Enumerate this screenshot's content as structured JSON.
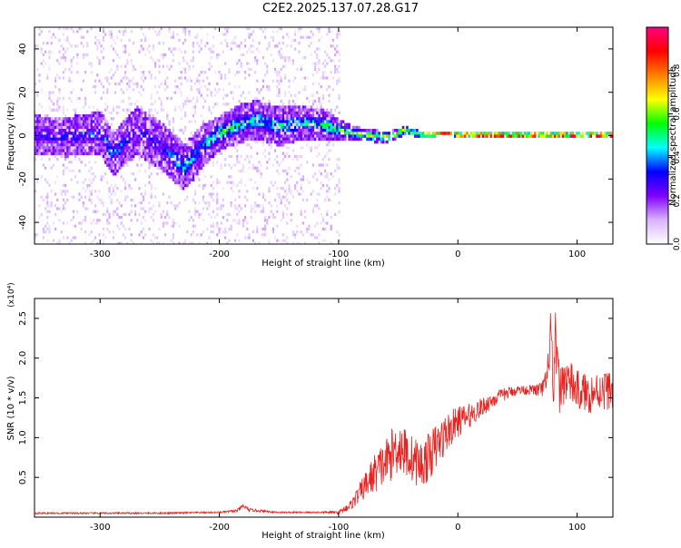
{
  "title": "C2E2.2025.137.07.28.G17",
  "colors": {
    "snr_line": "#e8211e",
    "axis": "#000000",
    "background": "#ffffff",
    "colorbar_stops": [
      "#ffffff",
      "#d9b3ff",
      "#8000ff",
      "#0000ff",
      "#00ffff",
      "#00ff00",
      "#ffff00",
      "#ff8000",
      "#ff0000",
      "#ff0080"
    ]
  },
  "chart_data": [
    {
      "type": "heatmap",
      "xlabel": "Height of straight line (km)",
      "ylabel": "Frequency (Hz)",
      "xlim": [
        -355,
        130
      ],
      "ylim": [
        -50,
        50
      ],
      "x_ticks": [
        -300,
        -200,
        -100,
        0,
        100
      ],
      "y_ticks": [
        -40,
        -20,
        0,
        20,
        40
      ],
      "grid": false,
      "colorbar": {
        "label": "Normalized spectral amplitude",
        "range": [
          0,
          1
        ],
        "ticks": [
          "0.0",
          "0.2",
          "0.4",
          "0.6",
          "0.8"
        ],
        "tick_values": [
          0.0,
          0.2,
          0.4,
          0.6,
          0.8
        ]
      },
      "ridge": {
        "x": [
          -355,
          -330,
          -300,
          -290,
          -270,
          -250,
          -230,
          -215,
          -200,
          -185,
          -170,
          -150,
          -130,
          -110,
          -100,
          -80,
          -60,
          -45,
          -30,
          -10,
          0,
          20,
          40,
          60,
          80,
          100,
          130
        ],
        "center": [
          1,
          0,
          2,
          -8,
          3,
          -4,
          -14,
          -4,
          2,
          6,
          8,
          5,
          7,
          5,
          3,
          1,
          0,
          3,
          1,
          2,
          1,
          1,
          1,
          1,
          1,
          1,
          1
        ],
        "spread": [
          18,
          18,
          20,
          20,
          22,
          22,
          22,
          20,
          16,
          18,
          18,
          18,
          16,
          14,
          10,
          6,
          5,
          4,
          3,
          2,
          2,
          2,
          2,
          2,
          2,
          2,
          2
        ],
        "peak_amplitude": [
          0.3,
          0.3,
          0.35,
          0.4,
          0.3,
          0.3,
          0.45,
          0.4,
          0.55,
          0.5,
          0.45,
          0.45,
          0.45,
          0.5,
          0.55,
          0.6,
          0.65,
          0.7,
          0.75,
          0.85,
          0.95,
          0.98,
          0.98,
          0.98,
          0.98,
          0.98,
          0.98
        ]
      }
    },
    {
      "type": "line",
      "xlabel": "Height of straight line (km)",
      "ylabel": "SNR (10 * v/v)",
      "y_multiplier": "(x10⁴)",
      "xlim": [
        -355,
        130
      ],
      "ylim": [
        0,
        2.75
      ],
      "x_ticks": [
        -300,
        -200,
        -100,
        0,
        100
      ],
      "y_ticks": [
        0.5,
        1.0,
        1.5,
        2.0,
        2.5
      ],
      "y_tick_labels": [
        "0.5",
        "1.0",
        "1.5",
        "2.0",
        "2.5"
      ],
      "grid": false,
      "series": [
        {
          "x": [
            -355,
            -300,
            -250,
            -200,
            -185,
            -180,
            -175,
            -150,
            -120,
            -100,
            -90,
            -80,
            -70,
            -60,
            -50,
            -40,
            -30,
            -20,
            -10,
            0,
            10,
            20,
            30,
            40,
            50,
            60,
            70,
            75,
            78,
            80,
            82,
            85,
            90,
            100,
            110,
            120,
            130
          ],
          "values": [
            0.05,
            0.05,
            0.05,
            0.06,
            0.08,
            0.14,
            0.09,
            0.06,
            0.06,
            0.06,
            0.15,
            0.35,
            0.55,
            0.7,
            0.9,
            0.75,
            0.65,
            0.85,
            1.05,
            1.2,
            1.28,
            1.38,
            1.48,
            1.55,
            1.6,
            1.6,
            1.6,
            1.7,
            2.45,
            1.3,
            2.25,
            1.6,
            1.75,
            1.6,
            1.55,
            1.6,
            1.6
          ],
          "noise": [
            0.01,
            0.01,
            0.01,
            0.01,
            0.02,
            0.03,
            0.02,
            0.01,
            0.01,
            0.02,
            0.06,
            0.15,
            0.25,
            0.3,
            0.35,
            0.3,
            0.3,
            0.3,
            0.25,
            0.2,
            0.15,
            0.12,
            0.1,
            0.08,
            0.06,
            0.06,
            0.1,
            0.2,
            0.4,
            0.4,
            0.4,
            0.3,
            0.3,
            0.25,
            0.25,
            0.25,
            0.25
          ]
        }
      ]
    }
  ]
}
